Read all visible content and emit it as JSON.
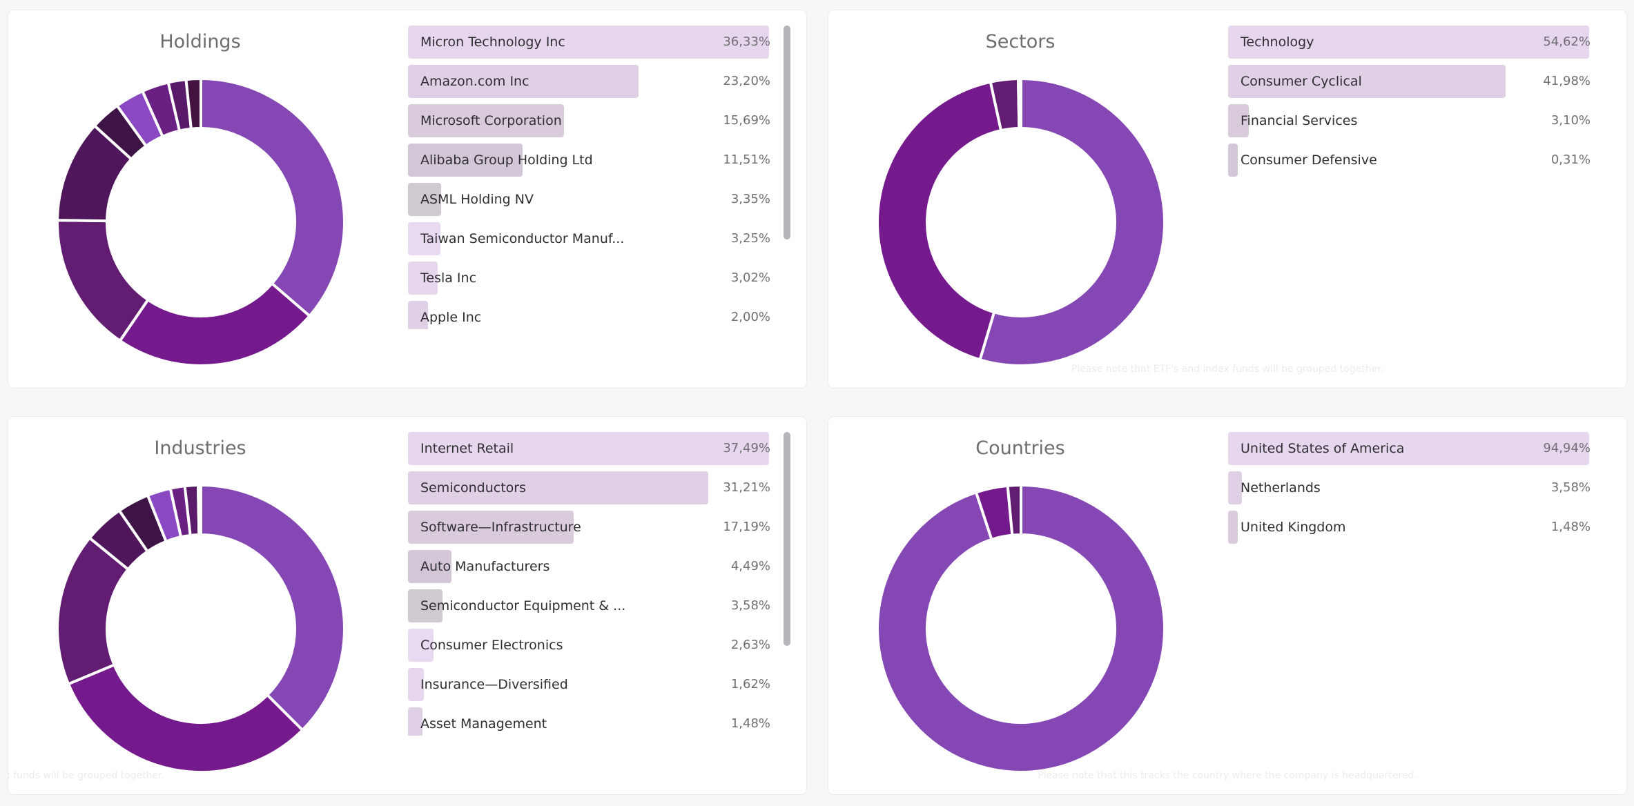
{
  "colors": {
    "slice_palette": [
      "#8547b3",
      "#741a8d",
      "#621d72",
      "#4f165c",
      "#3e1447",
      "#8a49c2",
      "#6a1f82",
      "#5a1a6a",
      "#43123f",
      "#2c0f2f"
    ],
    "bar_palette": [
      "#e6d7ee",
      "#e0d0e6",
      "#d9cbdc",
      "#d3c6d7",
      "#cfc9d2",
      "#e7daf1"
    ]
  },
  "holdings": {
    "title": "Holdings",
    "items": [
      {
        "label": "Micron Technology Inc",
        "value": "36,33%",
        "pct": 36.33
      },
      {
        "label": "Amazon.com Inc",
        "value": "23,20%",
        "pct": 23.2
      },
      {
        "label": "Microsoft Corporation",
        "value": "15,69%",
        "pct": 15.69
      },
      {
        "label": "Alibaba Group Holding Ltd",
        "value": "11,51%",
        "pct": 11.51
      },
      {
        "label": "ASML Holding NV",
        "value": "3,35%",
        "pct": 3.35
      },
      {
        "label": "Taiwan Semiconductor Manuf...",
        "value": "3,25%",
        "pct": 3.25
      },
      {
        "label": "Tesla Inc",
        "value": "3,02%",
        "pct": 3.02
      },
      {
        "label": "Apple Inc",
        "value": "2,00%",
        "pct": 2.0
      }
    ],
    "extra_slices": [
      1.65
    ]
  },
  "sectors": {
    "title": "Sectors",
    "items": [
      {
        "label": "Technology",
        "value": "54,62%",
        "pct": 54.62
      },
      {
        "label": "Consumer Cyclical",
        "value": "41,98%",
        "pct": 41.98
      },
      {
        "label": "Financial Services",
        "value": "3,10%",
        "pct": 3.1
      },
      {
        "label": "Consumer Defensive",
        "value": "0,31%",
        "pct": 0.31
      }
    ],
    "note": "Please note that ETF's and index funds will be grouped together."
  },
  "industries": {
    "title": "Industries",
    "items": [
      {
        "label": "Internet Retail",
        "value": "37,49%",
        "pct": 37.49
      },
      {
        "label": "Semiconductors",
        "value": "31,21%",
        "pct": 31.21
      },
      {
        "label": "Software—Infrastructure",
        "value": "17,19%",
        "pct": 17.19
      },
      {
        "label": "Auto Manufacturers",
        "value": "4,49%",
        "pct": 4.49
      },
      {
        "label": "Semiconductor Equipment & ...",
        "value": "3,58%",
        "pct": 3.58
      },
      {
        "label": "Consumer Electronics",
        "value": "2,63%",
        "pct": 2.63
      },
      {
        "label": "Insurance—Diversified",
        "value": "1,62%",
        "pct": 1.62
      },
      {
        "label": "Asset Management",
        "value": "1,48%",
        "pct": 1.48
      }
    ],
    "extra_slices": [
      0.31
    ],
    "note": "Please note that ETF's and index funds will be grouped together."
  },
  "countries": {
    "title": "Countries",
    "items": [
      {
        "label": "United States of America",
        "value": "94,94%",
        "pct": 94.94
      },
      {
        "label": "Netherlands",
        "value": "3,58%",
        "pct": 3.58
      },
      {
        "label": "United Kingdom",
        "value": "1,48%",
        "pct": 1.48
      }
    ],
    "note": "Please note that this tracks the country where the company is headquartered."
  },
  "chart_data": [
    {
      "type": "pie",
      "title": "Holdings",
      "categories": [
        "Micron Technology Inc",
        "Amazon.com Inc",
        "Microsoft Corporation",
        "Alibaba Group Holding Ltd",
        "ASML Holding NV",
        "Taiwan Semiconductor Manuf...",
        "Tesla Inc",
        "Apple Inc"
      ],
      "values": [
        36.33,
        23.2,
        15.69,
        11.51,
        3.35,
        3.25,
        3.02,
        2.0
      ]
    },
    {
      "type": "pie",
      "title": "Sectors",
      "categories": [
        "Technology",
        "Consumer Cyclical",
        "Financial Services",
        "Consumer Defensive"
      ],
      "values": [
        54.62,
        41.98,
        3.1,
        0.31
      ]
    },
    {
      "type": "pie",
      "title": "Industries",
      "categories": [
        "Internet Retail",
        "Semiconductors",
        "Software—Infrastructure",
        "Auto Manufacturers",
        "Semiconductor Equipment & ...",
        "Consumer Electronics",
        "Insurance—Diversified",
        "Asset Management"
      ],
      "values": [
        37.49,
        31.21,
        17.19,
        4.49,
        3.58,
        2.63,
        1.62,
        1.48
      ]
    },
    {
      "type": "pie",
      "title": "Countries",
      "categories": [
        "United States of America",
        "Netherlands",
        "United Kingdom"
      ],
      "values": [
        94.94,
        3.58,
        1.48
      ]
    }
  ]
}
